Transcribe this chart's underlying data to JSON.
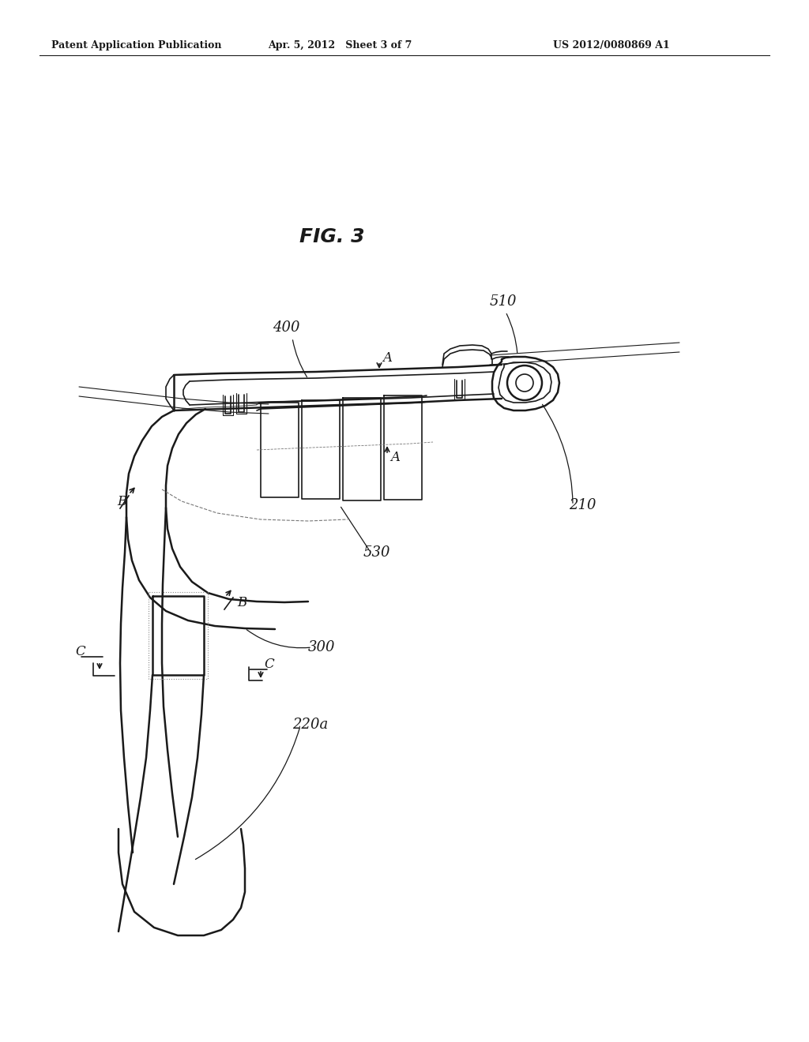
{
  "background_color": "#ffffff",
  "header_left": "Patent Application Publication",
  "header_center": "Apr. 5, 2012   Sheet 3 of 7",
  "header_right": "US 2012/0080869 A1",
  "fig_label": "FIG. 3",
  "line_color": "#1a1a1a",
  "label_fontsize": 13,
  "header_fontsize": 9,
  "fig_label_fontsize": 18
}
